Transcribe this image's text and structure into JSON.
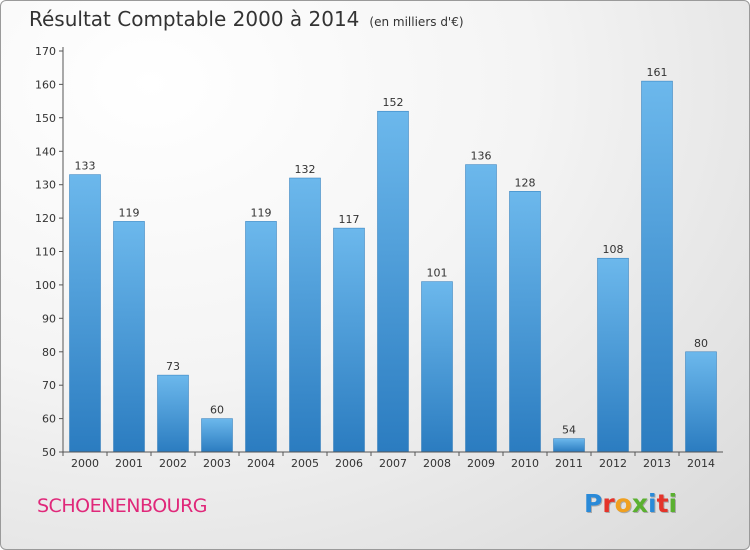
{
  "title": "Résultat Comptable 2000 à 2014",
  "unit_note": "(en milliers d'€)",
  "commune": "SCHOENENBOURG",
  "logo": {
    "letters": [
      "P",
      "r",
      "o",
      "x",
      "i",
      "t",
      "i"
    ],
    "colors": [
      "#2a8ad8",
      "#e4342a",
      "#f0a020",
      "#5ab030",
      "#2a8ad8",
      "#e4342a",
      "#5ab030"
    ]
  },
  "colors": {
    "bar_light": "#6cb8ec",
    "bar_dark": "#2b7cc0",
    "commune": "#e0287a"
  },
  "chart_data": {
    "type": "bar",
    "title": "Résultat Comptable 2000 à 2014",
    "categories": [
      "2000",
      "2001",
      "2002",
      "2003",
      "2004",
      "2005",
      "2006",
      "2007",
      "2008",
      "2009",
      "2010",
      "2011",
      "2012",
      "2013",
      "2014"
    ],
    "values": [
      133,
      119,
      73,
      60,
      119,
      132,
      117,
      152,
      101,
      136,
      128,
      54,
      108,
      161,
      80
    ],
    "ylim": [
      50,
      170
    ],
    "yticks": [
      50,
      60,
      70,
      80,
      90,
      100,
      110,
      120,
      130,
      140,
      150,
      160,
      170
    ],
    "grid": false,
    "data_labels": true
  }
}
